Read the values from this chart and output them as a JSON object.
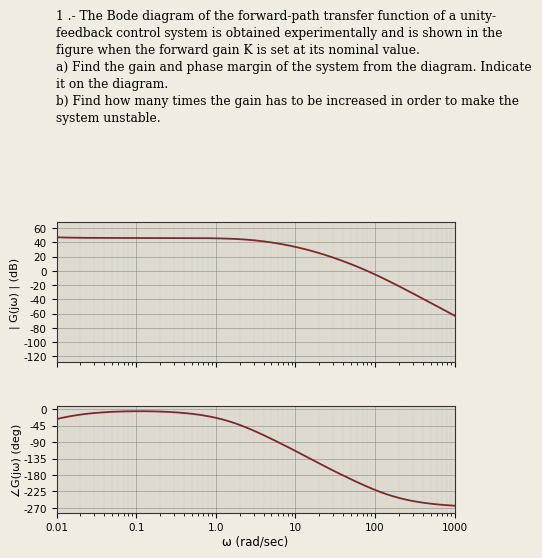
{
  "title_text": "1 .- The Bode diagram of the forward-path transfer function of a unity-\nfeedback control system is obtained experimentally and is shown in the\nfigure when the forward gain K is set at its nominal value.\na) Find the gain and phase margin of the system from the diagram. Indicate\nit on the diagram.\nb) Find how many times the gain has to be increased in order to make the\nsystem unstable.",
  "mag_yticks": [
    60,
    40,
    20,
    0,
    -20,
    -40,
    -60,
    -80,
    -100,
    -120
  ],
  "mag_ylim": [
    -128,
    68
  ],
  "phase_yticks": [
    0,
    -45,
    -90,
    -135,
    -180,
    -225,
    -270
  ],
  "phase_ylim": [
    -283,
    8
  ],
  "xlim_min": 0.01,
  "xlim_max": 1000,
  "xtick_labels": [
    "0.01",
    "0.1",
    "1.0",
    "10",
    "100",
    "1000"
  ],
  "xlabel": "ω (rad/sec)",
  "mag_ylabel": "| G(jω) | (dB)",
  "phase_ylabel": "∠G(jω) (deg)",
  "curve_color": "#7a2a2a",
  "bg_color": "#dedad0",
  "grid_color_major": "#888888",
  "grid_color_minor": "#bbbbbb",
  "fig_bg": "#f0ece2",
  "K": 1.0,
  "zero": 0.005,
  "poles": [
    3.0,
    15.0,
    80.0
  ],
  "text_fontsize": 8.8,
  "fig_width": 4.74,
  "fig_height": 5.5
}
